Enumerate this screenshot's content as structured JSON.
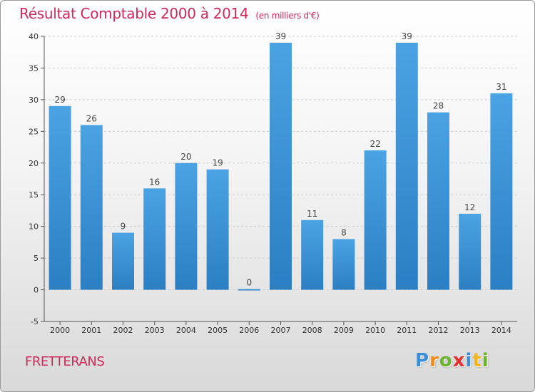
{
  "header": {
    "title": "Résultat Comptable 2000 à 2014",
    "unit": "(en milliers d'€)"
  },
  "footer": {
    "commune": "FRETTERANS",
    "logo_letters": [
      "P",
      "r",
      "o",
      "x",
      "i",
      "t",
      "i"
    ],
    "logo_colors": [
      "#3a8fd8",
      "#f28c1c",
      "#6bb52e",
      "#e2312f",
      "#3a8fd8",
      "#f4b41a",
      "#6bb52e"
    ]
  },
  "colors": {
    "bar": "#4aa3e3",
    "bar_dark": "#2b7fc4",
    "title": "#cc2a5a",
    "grid": "#cccccc"
  },
  "chart_data": {
    "type": "bar",
    "categories": [
      "2000",
      "2001",
      "2002",
      "2003",
      "2004",
      "2005",
      "2006",
      "2007",
      "2008",
      "2009",
      "2010",
      "2011",
      "2012",
      "2013",
      "2014"
    ],
    "values": [
      29,
      26,
      9,
      16,
      20,
      19,
      0,
      39,
      11,
      8,
      22,
      39,
      28,
      12,
      31
    ],
    "data_labels": [
      "29",
      "26",
      "9",
      "16",
      "20",
      "19",
      "0",
      "39",
      "11",
      "8",
      "22",
      "39",
      "28",
      "12",
      "31"
    ],
    "y_ticks": [
      "40",
      "35",
      "30",
      "25",
      "20",
      "15",
      "10",
      "5",
      "0",
      "-5"
    ],
    "ylim": [
      -5,
      40
    ],
    "grid": "horizontal dashed",
    "legend": "none"
  }
}
